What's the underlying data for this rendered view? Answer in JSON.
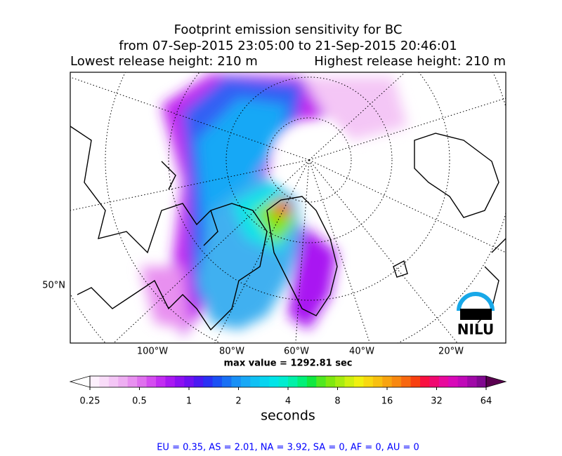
{
  "title_lines": [
    "Footprint emission sensitivity for BC",
    "from 07-Sep-2015 23:05:00 to 21-Sep-2015 20:46:01"
  ],
  "release": {
    "lowest": "Lowest release height: 210 m",
    "highest": "Highest release height: 210 m"
  },
  "map": {
    "lon_labels": [
      "100°W",
      "80°W",
      "60°W",
      "40°W",
      "20°W"
    ],
    "lat_labels": [
      "50°N"
    ],
    "logo": "NILU"
  },
  "max_value": "max value = 1292.81 sec",
  "colorbar": {
    "log_scale": true,
    "lim": [
      0.25,
      64
    ],
    "ticks": [
      0.25,
      0.5,
      1,
      2,
      4,
      8,
      16,
      32,
      64
    ],
    "label": "seconds",
    "under_color": "#ffffff",
    "over_color": "#5a0050",
    "colors": [
      "#fdf0fd",
      "#f9dcf9",
      "#f4c6f6",
      "#eeaef2",
      "#e890f0",
      "#df70ee",
      "#d44cf0",
      "#c22cf2",
      "#a918f2",
      "#8c10f2",
      "#6e10f2",
      "#4a18f2",
      "#2a30f4",
      "#1a50f4",
      "#1870f4",
      "#1890f6",
      "#18a8f6",
      "#10c0f4",
      "#08d4f0",
      "#00e4e8",
      "#00ecd0",
      "#00f0a8",
      "#00f078",
      "#10e840",
      "#50e820",
      "#80e810",
      "#a8ec10",
      "#d0f010",
      "#f0f010",
      "#f8d810",
      "#f8c010",
      "#f8a410",
      "#f88810",
      "#f86810",
      "#f84010",
      "#f81040",
      "#f00870",
      "#e8089c",
      "#d808b8",
      "#c008b8",
      "#a008a8",
      "#800890"
    ]
  },
  "footer": "EU = 0.35,  AS = 2.01,  NA = 3.92,  SA = 0,  AF = 0,  AU = 0"
}
